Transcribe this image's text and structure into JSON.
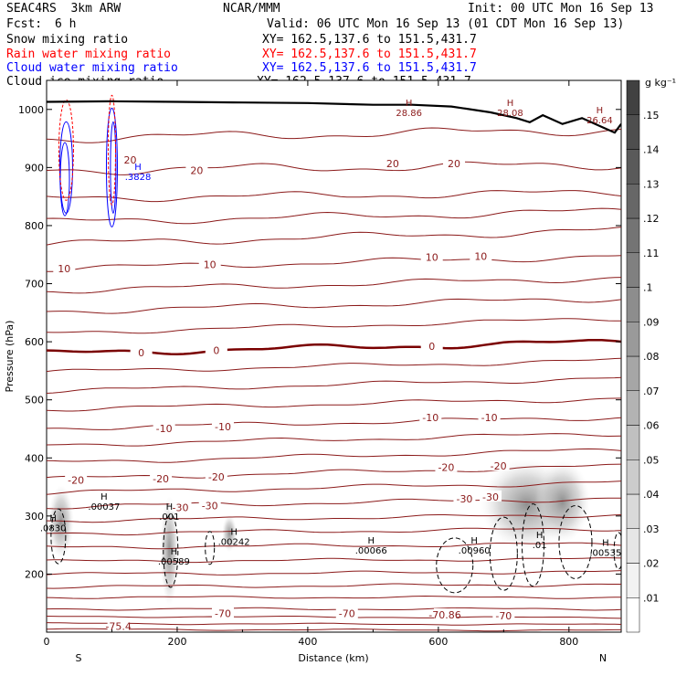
{
  "header": {
    "model": "SEAC4RS  3km ARW",
    "center": "NCAR/MMM",
    "init": "Init: 00 UTC Mon 16 Sep 13",
    "fcst_label": "Fcst:",
    "fcst_value": "6 h",
    "valid": "Valid: 06 UTC Mon 16 Sep 13 (01 CDT Mon 16 Sep 13)"
  },
  "fields": [
    {
      "name": "Snow mixing ratio",
      "xy": "XY= 162.5,137.6 to 151.5,431.7",
      "color": "#000000"
    },
    {
      "name": "Rain water mixing ratio",
      "xy": "XY= 162.5,137.6 to 151.5,431.7",
      "color": "#ff0000"
    },
    {
      "name": "Cloud water mixing ratio",
      "xy": "XY= 162.5,137.6 to 151.5,431.7",
      "color": "#0000ff"
    },
    {
      "name": "Cloud ice mixing ratio",
      "xy": "XY= 162.5,137.6 to 151.5,431.7",
      "color": "#000000"
    }
  ],
  "chart_data": {
    "type": "contour",
    "xlabel": "Distance (km)",
    "ylabel": "Pressure (hPa)",
    "xlim": [
      0,
      880
    ],
    "ylim": [
      1050,
      100
    ],
    "x_ticks": [
      0,
      200,
      400,
      600,
      800
    ],
    "y_ticks": [
      200,
      300,
      400,
      500,
      600,
      700,
      800,
      900,
      1000
    ],
    "end_labels": {
      "left": "S",
      "right": "N"
    },
    "colorbar": {
      "unit": "g kg⁻¹",
      "ticks": [
        ".01",
        ".02",
        ".03",
        ".04",
        ".05",
        ".06",
        ".07",
        ".08",
        ".09",
        ".1",
        ".11",
        ".12",
        ".13",
        ".14",
        ".15"
      ],
      "bins": 16
    },
    "temperature_contour_labels": [
      {
        "text": "-75.4",
        "x": 110,
        "p": 110
      },
      {
        "text": "-70",
        "x": 270,
        "p": 132
      },
      {
        "text": "-70",
        "x": 460,
        "p": 132
      },
      {
        "text": "-70.86",
        "x": 610,
        "p": 130
      },
      {
        "text": "-70",
        "x": 700,
        "p": 128
      },
      {
        "text": "-30",
        "x": 205,
        "p": 315
      },
      {
        "text": "-30",
        "x": 250,
        "p": 318
      },
      {
        "text": "-30",
        "x": 640,
        "p": 330
      },
      {
        "text": "-30",
        "x": 680,
        "p": 333
      },
      {
        "text": "-20",
        "x": 45,
        "p": 362
      },
      {
        "text": "-20",
        "x": 175,
        "p": 364
      },
      {
        "text": "-20",
        "x": 260,
        "p": 367
      },
      {
        "text": "-20",
        "x": 612,
        "p": 384
      },
      {
        "text": "-20",
        "x": 692,
        "p": 386
      },
      {
        "text": "-10",
        "x": 180,
        "p": 451
      },
      {
        "text": "-10",
        "x": 270,
        "p": 454
      },
      {
        "text": "-10",
        "x": 588,
        "p": 470
      },
      {
        "text": "-10",
        "x": 678,
        "p": 470
      },
      {
        "text": "0",
        "x": 145,
        "p": 581
      },
      {
        "text": "0",
        "x": 260,
        "p": 585
      },
      {
        "text": "0",
        "x": 590,
        "p": 592
      },
      {
        "text": "10",
        "x": 27,
        "p": 726
      },
      {
        "text": "10",
        "x": 250,
        "p": 733
      },
      {
        "text": "10",
        "x": 590,
        "p": 746
      },
      {
        "text": "10",
        "x": 665,
        "p": 747
      },
      {
        "text": "20",
        "x": 128,
        "p": 913
      },
      {
        "text": "20",
        "x": 230,
        "p": 895
      },
      {
        "text": "20",
        "x": 530,
        "p": 907
      },
      {
        "text": "20",
        "x": 624,
        "p": 907
      }
    ],
    "maxima_labels": [
      {
        "text": ".0830",
        "x": 10,
        "p": 275
      },
      {
        "text": ".00037",
        "x": 88,
        "p": 312
      },
      {
        "text": ".00589",
        "x": 195,
        "p": 218
      },
      {
        "text": ".001",
        "x": 188,
        "p": 295
      },
      {
        "text": ".00242",
        "x": 287,
        "p": 252
      },
      {
        "text": ".00066",
        "x": 497,
        "p": 237
      },
      {
        "text": ".00960",
        "x": 655,
        "p": 237
      },
      {
        "text": ".01",
        "x": 755,
        "p": 246
      },
      {
        "text": ".00535",
        "x": 856,
        "p": 233
      },
      {
        "text": ".3828",
        "x": 140,
        "p": 880
      },
      {
        "text": "28.86",
        "x": 555,
        "p": 990
      },
      {
        "text": "28.08",
        "x": 710,
        "p": 990
      },
      {
        "text": "26.64",
        "x": 847,
        "p": 978
      }
    ]
  }
}
